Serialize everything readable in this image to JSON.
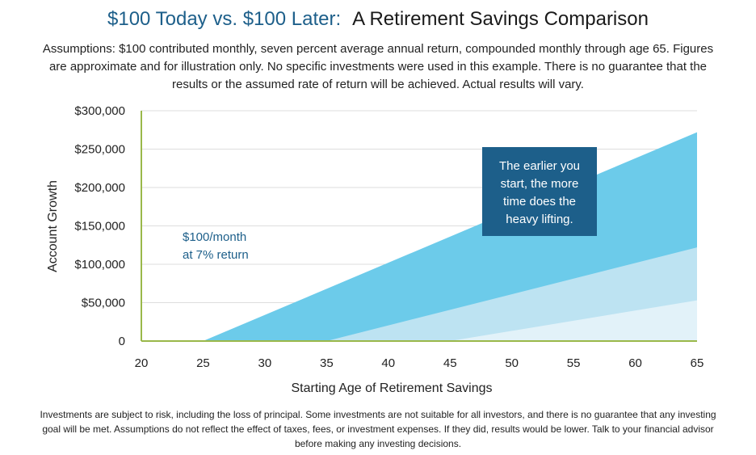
{
  "header": {
    "title_part1": "$100 Today vs. $100 Later:",
    "title_part2": "A Retirement Savings Comparison",
    "assumptions": "Assumptions: $100 contributed monthly, seven percent average annual return, compounded monthly through age 65. Figures are approximate and for illustration only. No specific investments were used in this example. There is no guarantee that the results or the assumed rate of return will be achieved. Actual results will vary."
  },
  "footer": {
    "disclaimer": "Investments are subject to risk, including the loss of principal. Some investments are not suitable for all investors, and there is no guarantee that any investing goal will be met. Assumptions do not reflect the effect of taxes, fees, or investment expenses. If they did, results would be lower. Talk to your financial advisor before making any investing decisions."
  },
  "chart_data": {
    "type": "area",
    "xlabel": "Starting Age of Retirement Savings",
    "ylabel": "Account Growth",
    "xlim": [
      20,
      65
    ],
    "ylim": [
      0,
      300000
    ],
    "x_ticks": [
      20,
      25,
      30,
      35,
      40,
      45,
      50,
      55,
      60,
      65
    ],
    "y_ticks": [
      {
        "value": 0,
        "label": "0"
      },
      {
        "value": 50000,
        "label": "$50,000"
      },
      {
        "value": 100000,
        "label": "$100,000"
      },
      {
        "value": 150000,
        "label": "$150,000"
      },
      {
        "value": 200000,
        "label": "$200,000"
      },
      {
        "value": 250000,
        "label": "$250,000"
      },
      {
        "value": 300000,
        "label": "$300,000"
      }
    ],
    "grid": true,
    "series": [
      {
        "start_age": 25,
        "points": [
          [
            25,
            0
          ],
          [
            65,
            272000
          ]
        ],
        "color": "#6ccbea"
      },
      {
        "start_age": 35,
        "points": [
          [
            35,
            0
          ],
          [
            65,
            122000
          ]
        ],
        "color": "#bde3f2"
      },
      {
        "start_age": 45,
        "points": [
          [
            45,
            0
          ],
          [
            65,
            53000
          ]
        ],
        "color": "#e2f2f9"
      }
    ],
    "annotations": {
      "rate_line1": "$100/month",
      "rate_line2": "at 7% return",
      "callout": [
        "The earlier you",
        "start, the more",
        "time does the",
        "heavy lifting."
      ]
    },
    "colors": {
      "grid": "#dddddd",
      "baseline": "#9ab84a",
      "callout_bg": "#1d5f8a"
    }
  }
}
